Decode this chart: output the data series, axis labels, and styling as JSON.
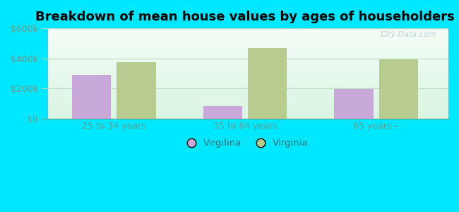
{
  "title": "Breakdown of mean house values by ages of householders",
  "categories": [
    "25 to 34 years",
    "35 to 64 years",
    "65 years+"
  ],
  "virgilina_values": [
    290000,
    85000,
    195000
  ],
  "virginia_values": [
    375000,
    470000,
    395000
  ],
  "ylim": [
    0,
    600000
  ],
  "yticks": [
    0,
    200000,
    400000,
    600000
  ],
  "ytick_labels": [
    "$0",
    "$200k",
    "$400k",
    "$600k"
  ],
  "bar_color_virgilina": "#c8a8d8",
  "bar_color_virginia": "#b8cc90",
  "legend_label_virgilina": "Virgilina",
  "legend_label_virginia": "Virginia",
  "background_outer": "#00e8ff",
  "grid_color": "#b8d8c0",
  "title_fontsize": 13,
  "tick_label_color": "#6a9a8a",
  "bar_width": 0.3,
  "watermark": "City-Data.com",
  "legend_text_color": "#3a6a6a"
}
